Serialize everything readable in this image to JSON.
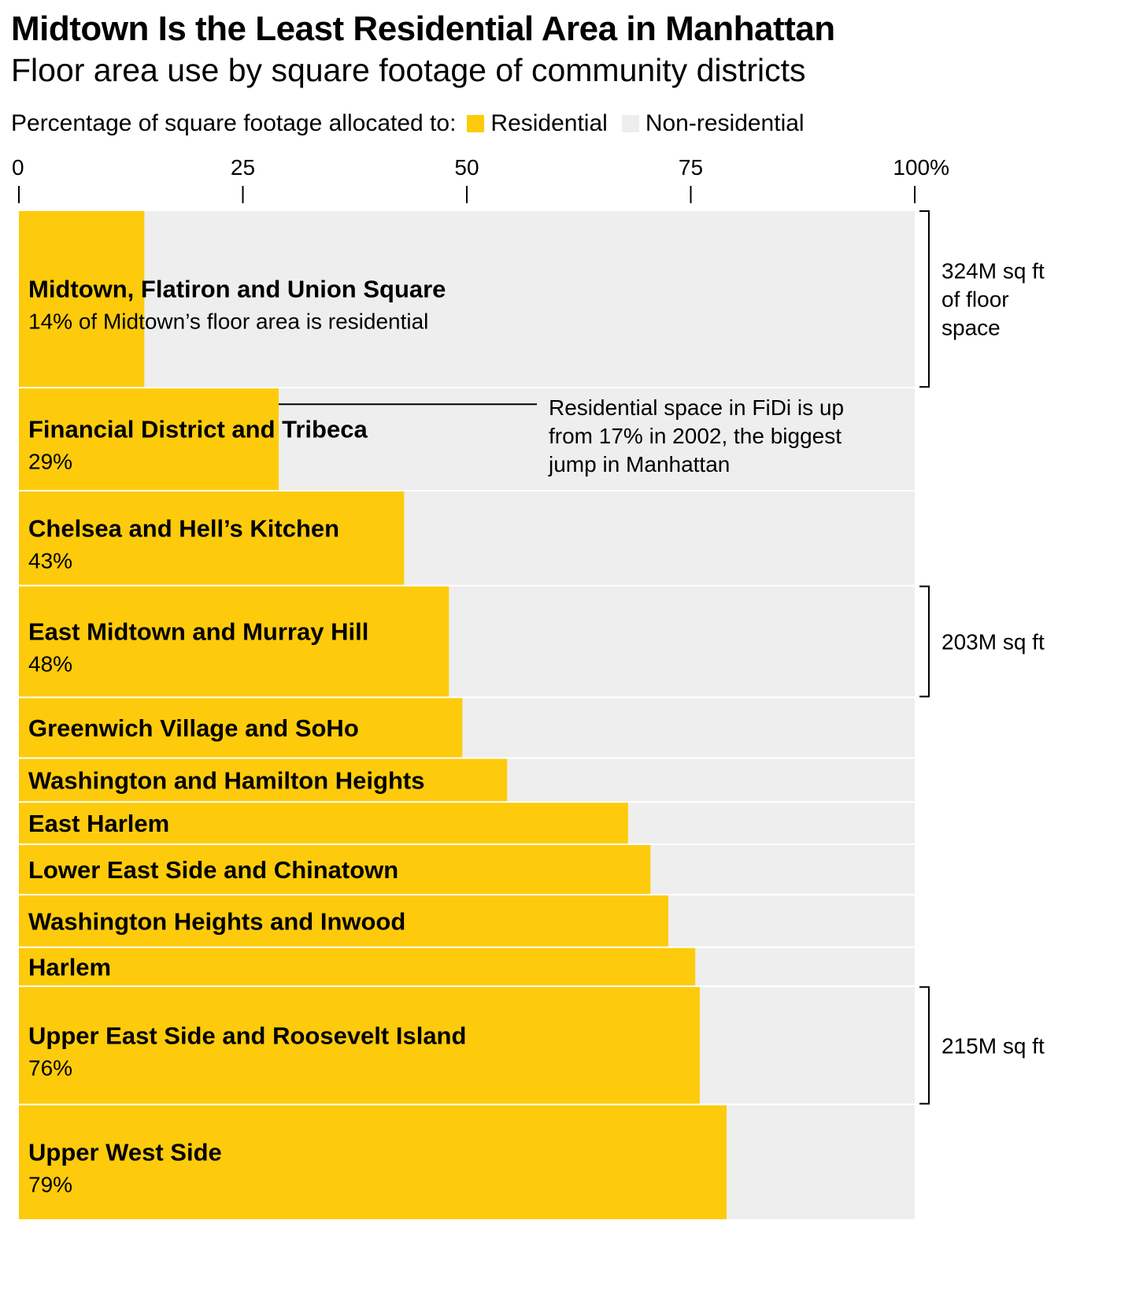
{
  "chart_data": {
    "type": "bar",
    "orientation": "horizontal",
    "stacked": true,
    "variable_width": true,
    "title": "Midtown Is the Least Residential Area in Manhattan",
    "subtitle": "Floor area use by square footage of community districts",
    "legend_title": "Percentage of square footage allocated to:",
    "series": [
      {
        "name": "Residential",
        "color": "#FDCB0B"
      },
      {
        "name": "Non-residential",
        "color": "#EEEEEE"
      }
    ],
    "xlim": [
      0,
      100
    ],
    "ticks": [
      {
        "value": 0,
        "label": "0"
      },
      {
        "value": 25,
        "label": "25"
      },
      {
        "value": 50,
        "label": "50"
      },
      {
        "value": 75,
        "label": "75"
      },
      {
        "value": 100,
        "label": "100%"
      }
    ],
    "rows": [
      {
        "name": "Midtown, Flatiron and Union Square",
        "residential": 14,
        "sqft_m": 324,
        "label": "14% of Midtown’s floor area is residential"
      },
      {
        "name": "Financial District and Tribeca",
        "residential": 29,
        "sqft_m": 187,
        "label": "29%"
      },
      {
        "name": "Chelsea and Hell’s Kitchen",
        "residential": 43,
        "sqft_m": 172,
        "label": "43%"
      },
      {
        "name": "East Midtown and Murray Hill",
        "residential": 48,
        "sqft_m": 203,
        "label": "48%"
      },
      {
        "name": "Greenwich Village and SoHo",
        "residential": 49.5,
        "sqft_m": 109,
        "label": ""
      },
      {
        "name": "Washington and Hamilton Heights",
        "residential": 54.5,
        "sqft_m": 78,
        "label": ""
      },
      {
        "name": "East Harlem",
        "residential": 68,
        "sqft_m": 75,
        "label": ""
      },
      {
        "name": "Lower East Side and Chinatown",
        "residential": 70.5,
        "sqft_m": 90,
        "label": ""
      },
      {
        "name": "Washington Heights and Inwood",
        "residential": 72.5,
        "sqft_m": 94,
        "label": ""
      },
      {
        "name": "Harlem",
        "residential": 75.5,
        "sqft_m": 69,
        "label": ""
      },
      {
        "name": "Upper East Side and Roosevelt Island",
        "residential": 76,
        "sqft_m": 215,
        "label": "76%"
      },
      {
        "name": "Upper West Side",
        "residential": 79,
        "sqft_m": 210,
        "label": "79%"
      }
    ],
    "brackets": [
      {
        "row": 0,
        "lines": [
          "324M sq ft",
          "of floor",
          "space"
        ]
      },
      {
        "row": 3,
        "lines": [
          "203M sq ft"
        ]
      },
      {
        "row": 10,
        "lines": [
          "215M sq ft"
        ]
      }
    ],
    "annotation": {
      "row": 1,
      "lines": [
        "Residential space in FiDi is up",
        "from 17% in 2002, the biggest",
        "jump in Manhattan"
      ]
    }
  }
}
